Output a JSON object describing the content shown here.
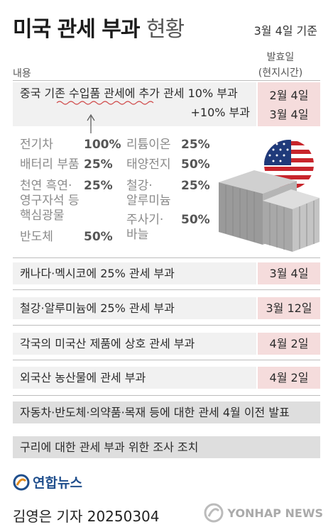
{
  "header": {
    "title_main": "미국 관세 부과",
    "title_sub": "현황",
    "date_basis": "3월 4일 기준"
  },
  "columns": {
    "content": "내용",
    "announce_line1": "발효일",
    "announce_line2": "(현지시간)"
  },
  "china": {
    "line1": "중국 기존 수입품 관세에 추가 관세 10% 부과",
    "line2": "+10% 부과",
    "date1": "2월 4일",
    "date2": "3월 4일"
  },
  "items": [
    {
      "name": "전기차",
      "value": "100%"
    },
    {
      "name": "배터리 부품",
      "value": "25%"
    },
    {
      "name": "천연 흑연·\n영구자석 등\n핵심광물",
      "value": "25%"
    },
    {
      "name": "반도체",
      "value": "50%"
    },
    {
      "name": "리튬이온",
      "value": "25%"
    },
    {
      "name": "태양전지",
      "value": "50%"
    },
    {
      "name": "철강·\n알루미늄",
      "value": "25%"
    },
    {
      "name": "주사기·\n바늘",
      "value": "50%"
    }
  ],
  "rows": [
    {
      "text": "캐나다·멕시코에 25% 관세 부과",
      "date": "3월 4일"
    },
    {
      "text": "철강·알루미늄에 25% 관세 부과",
      "date": "3월 12일"
    },
    {
      "text": "각국의 미국산 제품에 상호 관세 부과",
      "date": "4월 2일"
    },
    {
      "text": "외국산 농산물에 관세 부과",
      "date": "4월 2일"
    }
  ],
  "full_rows": [
    "자동차·반도체·의약품·목재 등에 대한 관세 4월 이전 발표",
    "구리에 대한 관세 부과 위한 조사 조치"
  ],
  "footer": {
    "logo_text": "연합뉴스",
    "byline": "김영은 기자  20250304",
    "watermark": "YONHAP NEWS"
  },
  "colors": {
    "date_cell": "#f5dcdc",
    "row_bg": "#f1f1f1",
    "full_row_bg": "#dedede",
    "logo_blue": "#1f4e8c"
  }
}
